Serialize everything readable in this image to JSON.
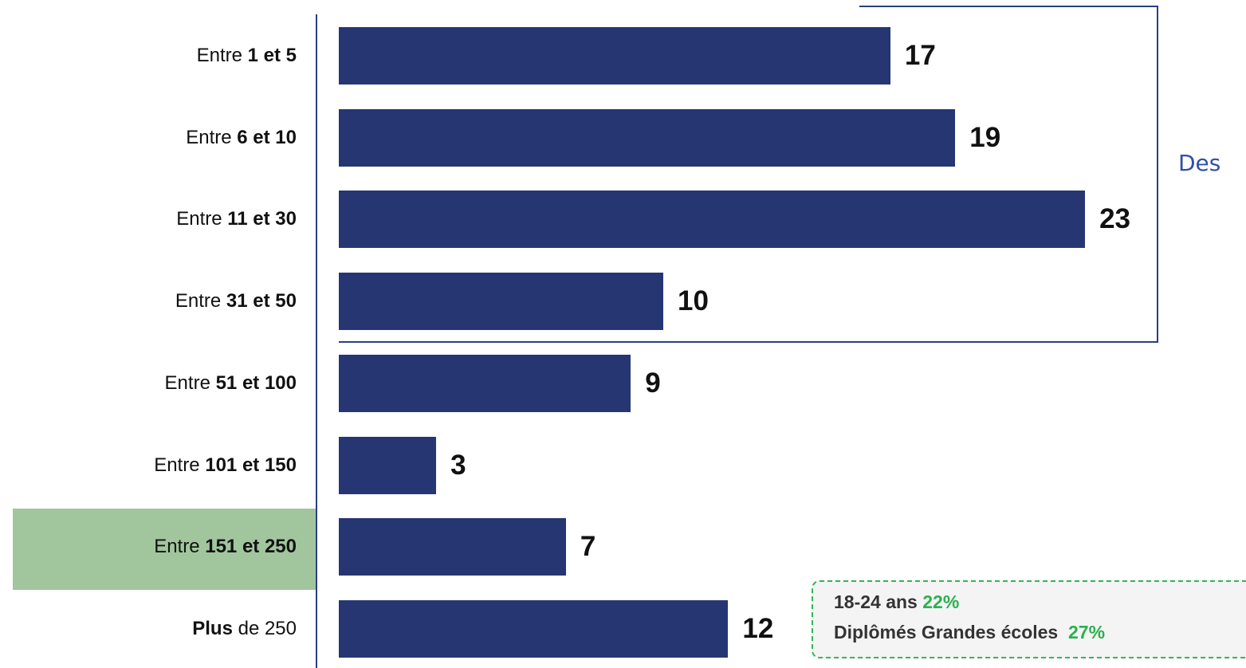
{
  "chart_data": {
    "type": "bar",
    "orientation": "horizontal",
    "categories": [
      {
        "pre": "Entre ",
        "bold": "1 et 5",
        "post": ""
      },
      {
        "pre": "Entre ",
        "bold": "6 et 10",
        "post": ""
      },
      {
        "pre": "Entre ",
        "bold": "11 et 30",
        "post": ""
      },
      {
        "pre": "Entre ",
        "bold": "31 et 50",
        "post": ""
      },
      {
        "pre": "Entre ",
        "bold": "51 et 100",
        "post": ""
      },
      {
        "pre": "Entre ",
        "bold": "101 et 150",
        "post": ""
      },
      {
        "pre": "Entre ",
        "bold": "151 et 250",
        "post": ""
      },
      {
        "pre": "",
        "bold": "Plus",
        "post": " de 250"
      }
    ],
    "values": [
      17,
      19,
      23,
      10,
      9,
      3,
      7,
      12
    ],
    "highlighted_category": "Entre 151 et 250",
    "bar_color": "#263673",
    "highlight_color": "#a1c69d",
    "bracket": {
      "covers": [
        "Entre 1 et 5",
        "Entre 6 et 10",
        "Entre 11 et 30",
        "Entre 31 et 50"
      ],
      "label": "Des"
    },
    "callout": {
      "line1_label": "18-24 ans",
      "line1_value": "22%",
      "line2_label": "Diplômés Grandes écoles",
      "line2_value": "27%",
      "accent_color": "#2ab14e"
    }
  }
}
